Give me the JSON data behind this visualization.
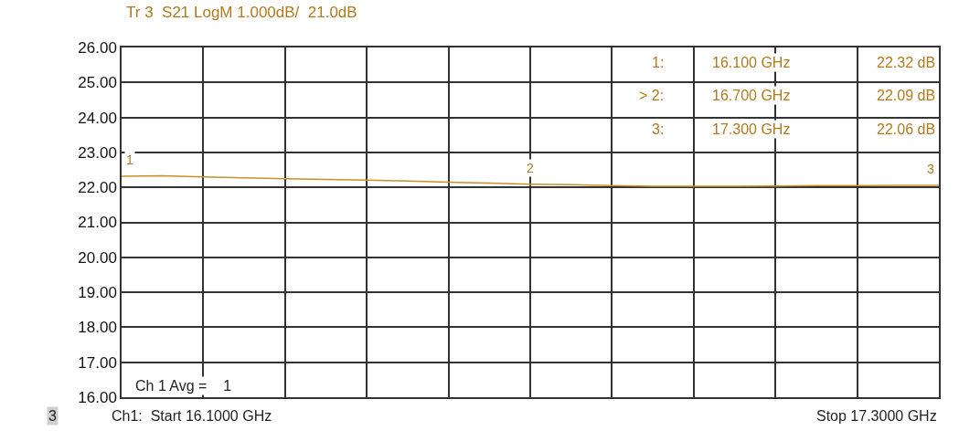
{
  "chart_data": {
    "type": "line",
    "title": "Tr 3  S21 LogM 1.000dB/  21.0dB",
    "categories": [
      null,
      null,
      null,
      null,
      null,
      null,
      null,
      null,
      null,
      null,
      null,
      null,
      null,
      null,
      null,
      null,
      null,
      null,
      null,
      null,
      null
    ],
    "series": [
      {
        "color": "#c8902a",
        "values": [
          22.32,
          22.33,
          22.3,
          22.27,
          22.25,
          22.23,
          22.21,
          22.18,
          22.15,
          22.12,
          22.09,
          22.08,
          22.05,
          22.03,
          22.03,
          22.03,
          22.04,
          22.05,
          22.05,
          22.06,
          22.06
        ]
      }
    ],
    "ylim": [
      16,
      26
    ],
    "yticks": [
      {
        "value": 16,
        "label": "16.00"
      },
      {
        "value": 17,
        "label": "17.00"
      },
      {
        "value": 18,
        "label": "18.00"
      },
      {
        "value": 19,
        "label": "19.00"
      },
      {
        "value": 20,
        "label": "20.00"
      },
      {
        "value": 21,
        "label": "21.00"
      },
      {
        "value": 22,
        "label": "22.00"
      },
      {
        "value": 23,
        "label": "23.00"
      },
      {
        "value": 24,
        "label": "24.00"
      },
      {
        "value": 25,
        "label": "25.00"
      },
      {
        "value": 26,
        "label": "26.00"
      }
    ],
    "tick_labels": "y",
    "grid": true,
    "marker": "none",
    "line_style": "solid",
    "annotations": [
      "1:",
      "16.100 GHz",
      "22.32 dB",
      "> 2:",
      "16.700 GHz",
      "22.09 dB",
      "3:",
      "17.300 GHz",
      "22.06 dB",
      "Ch 1 Avg =    1",
      "3",
      "Ch1:  Start 16.1000 GHz",
      "Stop 17.3000 GHz",
      "1",
      "2",
      "3"
    ]
  }
}
